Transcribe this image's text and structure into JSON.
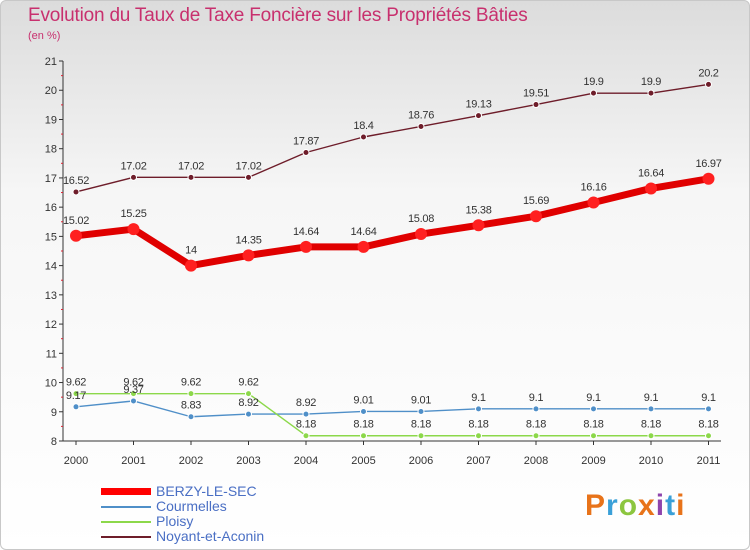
{
  "title": "Evolution du Taux de Taxe Foncière sur les Propriétés Bâties",
  "subtitle": "(en %)",
  "brand": "Proxiti",
  "chart_data": {
    "type": "line",
    "title": "Evolution du Taux de Taxe Foncière sur les Propriétés Bâties",
    "ylabel": "(en %)",
    "xlabel": "",
    "categories": [
      "2000",
      "2001",
      "2002",
      "2003",
      "2004",
      "2005",
      "2006",
      "2007",
      "2008",
      "2009",
      "2010",
      "2011"
    ],
    "ylim": [
      8,
      21
    ],
    "yticks": [
      "8",
      "9",
      "10",
      "11",
      "12",
      "13",
      "14",
      "15",
      "16",
      "17",
      "18",
      "19",
      "20",
      "21"
    ],
    "grid": false,
    "legend_position": "bottom-left",
    "series": [
      {
        "name": "Noyant-et-Aconin",
        "color": "#6e1d2a",
        "values": [
          16.52,
          17.02,
          17.02,
          17.02,
          17.87,
          18.4,
          18.76,
          19.13,
          19.51,
          19.9,
          19.9,
          20.2
        ],
        "labels": [
          "16.52",
          "17.02",
          "17.02",
          "17.02",
          "17.87",
          "18.4",
          "18.76",
          "19.13",
          "19.51",
          "19.9",
          "19.9",
          "20.2"
        ]
      },
      {
        "name": "BERZY-LE-SEC",
        "color": "#ff0000",
        "values": [
          15.02,
          15.25,
          14,
          14.35,
          14.64,
          14.64,
          15.08,
          15.38,
          15.69,
          16.16,
          16.64,
          16.97
        ],
        "labels": [
          "15.02",
          "15.25",
          "14",
          "14.35",
          "14.64",
          "14.64",
          "15.08",
          "15.38",
          "15.69",
          "16.16",
          "16.64",
          "16.97"
        ]
      },
      {
        "name": "Courmelles",
        "color": "#4f8fc8",
        "values": [
          9.17,
          9.37,
          8.83,
          8.92,
          8.92,
          9.01,
          9.01,
          9.1,
          9.1,
          9.1,
          9.1,
          9.1
        ],
        "labels": [
          "9.17",
          "9.37",
          "8.83",
          "8.92",
          "8.92",
          "9.01",
          "9.01",
          "9.1",
          "9.1",
          "9.1",
          "9.1",
          "9.1"
        ]
      },
      {
        "name": "Ploisy",
        "color": "#8cd84a",
        "values": [
          9.62,
          9.62,
          9.62,
          9.62,
          8.18,
          8.18,
          8.18,
          8.18,
          8.18,
          8.18,
          8.18,
          8.18
        ],
        "labels": [
          "9.62",
          "9.62",
          "9.62",
          "9.62",
          "8.18",
          "8.18",
          "8.18",
          "8.18",
          "8.18",
          "8.18",
          "8.18",
          "8.18"
        ]
      }
    ]
  },
  "legend": [
    {
      "label": "BERZY-LE-SEC",
      "color": "#ff0000"
    },
    {
      "label": "Courmelles",
      "color": "#4f8fc8"
    },
    {
      "label": "Ploisy",
      "color": "#8cd84a"
    },
    {
      "label": "Noyant-et-Aconin",
      "color": "#6e1d2a"
    }
  ]
}
